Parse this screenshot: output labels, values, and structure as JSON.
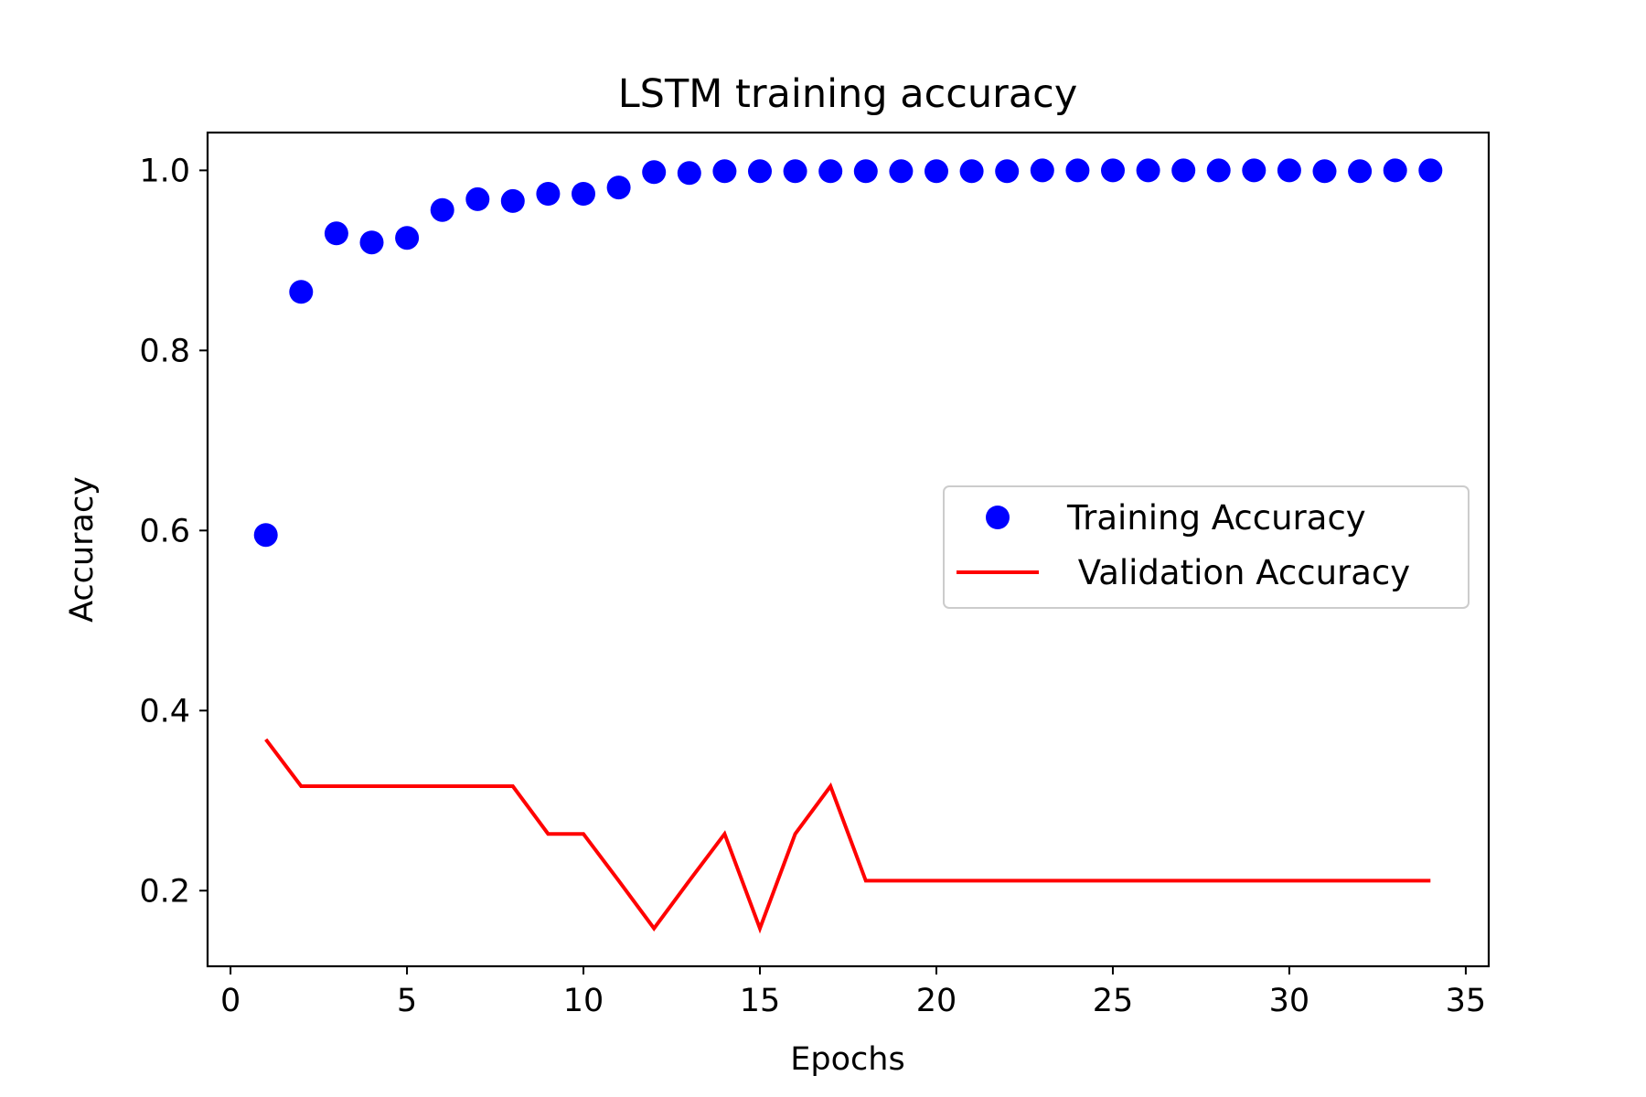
{
  "chart_data": {
    "type": "scatter",
    "title": "LSTM training accuracy",
    "xlabel": "Epochs",
    "ylabel": "Accuracy",
    "xlim": [
      -0.65,
      35.65
    ],
    "ylim": [
      0.116,
      1.042
    ],
    "xticks": [
      0,
      5,
      10,
      15,
      20,
      25,
      30,
      35
    ],
    "xtick_labels": [
      "0",
      "5",
      "10",
      "15",
      "20",
      "25",
      "30",
      "35"
    ],
    "yticks": [
      0.2,
      0.4,
      0.6,
      0.8,
      1.0
    ],
    "ytick_labels": [
      "0.2",
      "0.4",
      "0.6",
      "0.8",
      "1.0"
    ],
    "grid": false,
    "legend_position": "center-right",
    "x": [
      1,
      2,
      3,
      4,
      5,
      6,
      7,
      8,
      9,
      10,
      11,
      12,
      13,
      14,
      15,
      16,
      17,
      18,
      19,
      20,
      21,
      22,
      23,
      24,
      25,
      26,
      27,
      28,
      29,
      30,
      31,
      32,
      33,
      34
    ],
    "series": [
      {
        "name": "Training Accuracy",
        "style": "markers",
        "color": "#0000ff",
        "values": [
          0.595,
          0.865,
          0.93,
          0.92,
          0.925,
          0.956,
          0.968,
          0.966,
          0.974,
          0.974,
          0.981,
          0.998,
          0.997,
          0.999,
          0.999,
          0.999,
          0.999,
          0.999,
          0.999,
          0.999,
          0.999,
          0.999,
          1.0,
          1.0,
          1.0,
          1.0,
          1.0,
          1.0,
          1.0,
          1.0,
          0.999,
          0.999,
          1.0,
          1.0
        ]
      },
      {
        "name": " Validation Accuracy",
        "style": "line",
        "color": "#ff0000",
        "values": [
          0.368,
          0.316,
          0.316,
          0.316,
          0.316,
          0.316,
          0.316,
          0.316,
          0.263,
          0.263,
          0.211,
          0.158,
          0.211,
          0.263,
          0.158,
          0.263,
          0.316,
          0.211,
          0.211,
          0.211,
          0.211,
          0.211,
          0.211,
          0.211,
          0.211,
          0.211,
          0.211,
          0.211,
          0.211,
          0.211,
          0.211,
          0.211,
          0.211,
          0.211
        ]
      }
    ]
  }
}
